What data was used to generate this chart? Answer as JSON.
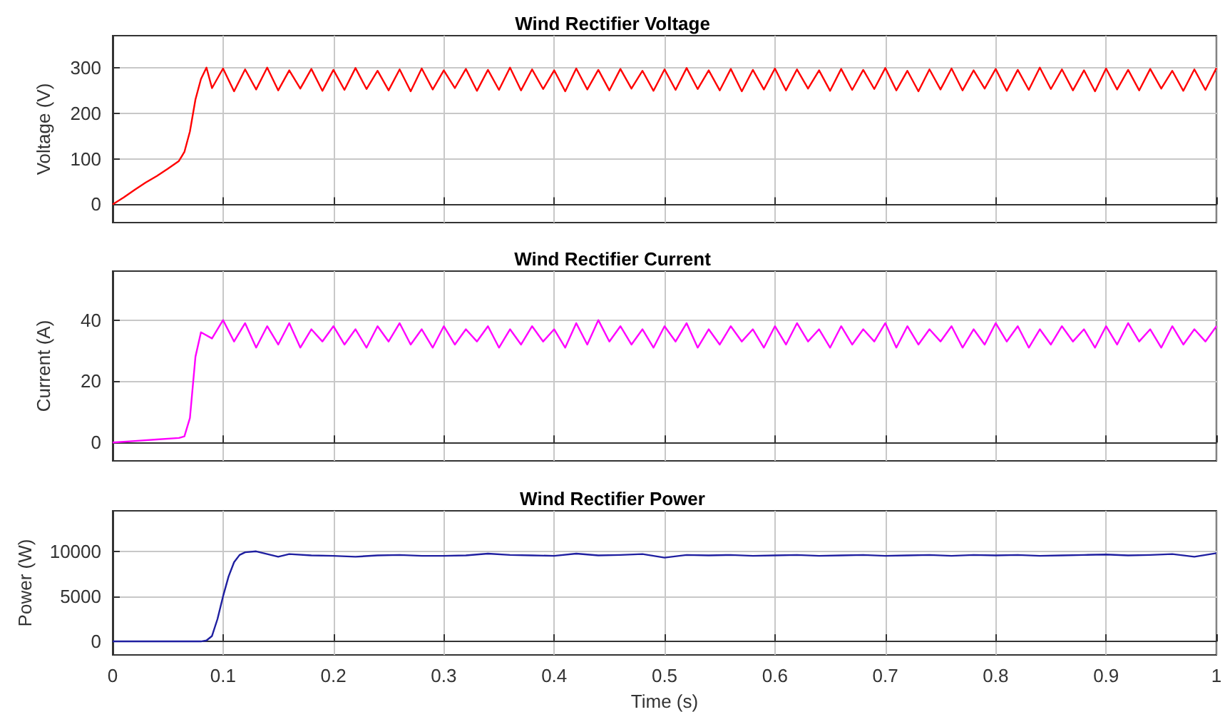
{
  "chart_data": [
    {
      "type": "line",
      "title": "Wind Rectifier Voltage",
      "ylabel": "Voltage (V)",
      "xlim": [
        0,
        1
      ],
      "xticks": [
        0,
        0.1,
        0.2,
        0.3,
        0.4,
        0.5,
        0.6,
        0.7,
        0.8,
        0.9,
        1
      ],
      "ylim": [
        -40,
        370
      ],
      "yticks": [
        0,
        100,
        200,
        300
      ],
      "grid": true,
      "tick_labels": "y",
      "series": [
        {
          "color": "#ff0000",
          "x": [
            0,
            0.01,
            0.02,
            0.03,
            0.04,
            0.05,
            0.06,
            0.065,
            0.07,
            0.075,
            0.08,
            0.085,
            0.09,
            0.1,
            0.11,
            0.12,
            0.13,
            0.14,
            0.15,
            0.16,
            0.17,
            0.18,
            0.19,
            0.2,
            0.21,
            0.22,
            0.23,
            0.24,
            0.25,
            0.26,
            0.27,
            0.28,
            0.29,
            0.3,
            0.31,
            0.32,
            0.33,
            0.34,
            0.35,
            0.36,
            0.37,
            0.38,
            0.39,
            0.4,
            0.41,
            0.42,
            0.43,
            0.44,
            0.45,
            0.46,
            0.47,
            0.48,
            0.49,
            0.5,
            0.51,
            0.52,
            0.53,
            0.54,
            0.55,
            0.56,
            0.57,
            0.58,
            0.59,
            0.6,
            0.61,
            0.62,
            0.63,
            0.64,
            0.65,
            0.66,
            0.67,
            0.68,
            0.69,
            0.7,
            0.71,
            0.72,
            0.73,
            0.74,
            0.75,
            0.76,
            0.77,
            0.78,
            0.79,
            0.8,
            0.81,
            0.82,
            0.83,
            0.84,
            0.85,
            0.86,
            0.87,
            0.88,
            0.89,
            0.9,
            0.91,
            0.92,
            0.93,
            0.94,
            0.95,
            0.96,
            0.97,
            0.98,
            0.99,
            1
          ],
          "values": [
            0,
            15,
            32,
            48,
            62,
            78,
            95,
            115,
            160,
            230,
            275,
            300,
            255,
            298,
            248,
            296,
            252,
            300,
            250,
            294,
            254,
            297,
            249,
            295,
            251,
            299,
            253,
            293,
            250,
            296,
            248,
            298,
            252,
            294,
            255,
            297,
            249,
            295,
            251,
            300,
            250,
            296,
            253,
            294,
            248,
            298,
            252,
            295,
            250,
            297,
            254,
            293,
            249,
            296,
            251,
            299,
            253,
            294,
            250,
            297,
            248,
            295,
            252,
            298,
            250,
            296,
            254,
            294,
            249,
            297,
            251,
            295,
            253,
            299,
            250,
            293,
            248,
            296,
            252,
            298,
            250,
            294,
            254,
            297,
            249,
            295,
            251,
            300,
            253,
            296,
            250,
            294,
            248,
            298,
            252,
            295,
            250,
            297,
            254,
            293,
            249,
            296,
            251,
            299
          ]
        }
      ]
    },
    {
      "type": "line",
      "title": "Wind Rectifier Current",
      "ylabel": "Current (A)",
      "xlim": [
        0,
        1
      ],
      "xticks": [
        0,
        0.1,
        0.2,
        0.3,
        0.4,
        0.5,
        0.6,
        0.7,
        0.8,
        0.9,
        1
      ],
      "ylim": [
        -6,
        56
      ],
      "yticks": [
        0,
        20,
        40
      ],
      "grid": true,
      "tick_labels": "y",
      "series": [
        {
          "color": "#ff00ff",
          "x": [
            0,
            0.02,
            0.04,
            0.06,
            0.065,
            0.07,
            0.075,
            0.08,
            0.09,
            0.1,
            0.11,
            0.12,
            0.13,
            0.14,
            0.15,
            0.16,
            0.17,
            0.18,
            0.19,
            0.2,
            0.21,
            0.22,
            0.23,
            0.24,
            0.25,
            0.26,
            0.27,
            0.28,
            0.29,
            0.3,
            0.31,
            0.32,
            0.33,
            0.34,
            0.35,
            0.36,
            0.37,
            0.38,
            0.39,
            0.4,
            0.41,
            0.42,
            0.43,
            0.44,
            0.45,
            0.46,
            0.47,
            0.48,
            0.49,
            0.5,
            0.51,
            0.52,
            0.53,
            0.54,
            0.55,
            0.56,
            0.57,
            0.58,
            0.59,
            0.6,
            0.61,
            0.62,
            0.63,
            0.64,
            0.65,
            0.66,
            0.67,
            0.68,
            0.69,
            0.7,
            0.71,
            0.72,
            0.73,
            0.74,
            0.75,
            0.76,
            0.77,
            0.78,
            0.79,
            0.8,
            0.81,
            0.82,
            0.83,
            0.84,
            0.85,
            0.86,
            0.87,
            0.88,
            0.89,
            0.9,
            0.91,
            0.92,
            0.93,
            0.94,
            0.95,
            0.96,
            0.97,
            0.98,
            0.99,
            1
          ],
          "values": [
            0,
            0.5,
            1,
            1.5,
            2,
            8,
            28,
            36,
            34,
            40,
            33,
            39,
            31,
            38,
            32,
            39,
            31,
            37,
            33,
            38,
            32,
            37,
            31,
            38,
            33,
            39,
            32,
            37,
            31,
            38,
            32,
            37,
            33,
            38,
            31,
            37,
            32,
            38,
            33,
            37,
            31,
            39,
            32,
            40,
            33,
            38,
            32,
            37,
            31,
            38,
            33,
            39,
            31,
            37,
            32,
            38,
            33,
            37,
            31,
            38,
            32,
            39,
            33,
            37,
            31,
            38,
            32,
            37,
            33,
            39,
            31,
            38,
            32,
            37,
            33,
            38,
            31,
            37,
            32,
            39,
            33,
            38,
            31,
            37,
            32,
            38,
            33,
            37,
            31,
            38,
            32,
            39,
            33,
            37,
            31,
            38,
            32,
            37,
            33,
            38
          ]
        }
      ]
    },
    {
      "type": "line",
      "title": "Wind Rectifier Power",
      "ylabel": "Power (W)",
      "xlabel": "Time (s)",
      "xlim": [
        0,
        1
      ],
      "xticks": [
        0,
        0.1,
        0.2,
        0.3,
        0.4,
        0.5,
        0.6,
        0.7,
        0.8,
        0.9,
        1
      ],
      "ylim": [
        -1500,
        14500
      ],
      "yticks": [
        0,
        5000,
        10000
      ],
      "grid": true,
      "series": [
        {
          "color": "#1f1fa0",
          "x": [
            0,
            0.02,
            0.04,
            0.06,
            0.08,
            0.085,
            0.09,
            0.095,
            0.1,
            0.105,
            0.11,
            0.115,
            0.12,
            0.13,
            0.14,
            0.15,
            0.16,
            0.18,
            0.2,
            0.22,
            0.24,
            0.26,
            0.28,
            0.3,
            0.32,
            0.34,
            0.36,
            0.38,
            0.4,
            0.42,
            0.44,
            0.46,
            0.48,
            0.5,
            0.52,
            0.54,
            0.56,
            0.58,
            0.6,
            0.62,
            0.64,
            0.66,
            0.68,
            0.7,
            0.72,
            0.74,
            0.76,
            0.78,
            0.8,
            0.82,
            0.84,
            0.86,
            0.88,
            0.9,
            0.92,
            0.94,
            0.96,
            0.98,
            1
          ],
          "values": [
            0,
            0,
            0,
            0,
            0,
            100,
            600,
            2500,
            5000,
            7200,
            8800,
            9600,
            9900,
            10000,
            9700,
            9400,
            9700,
            9550,
            9500,
            9400,
            9550,
            9600,
            9500,
            9500,
            9550,
            9750,
            9600,
            9550,
            9500,
            9750,
            9550,
            9600,
            9700,
            9300,
            9600,
            9550,
            9600,
            9500,
            9550,
            9600,
            9500,
            9550,
            9600,
            9500,
            9550,
            9600,
            9500,
            9600,
            9550,
            9600,
            9500,
            9550,
            9600,
            9650,
            9550,
            9600,
            9700,
            9400,
            9800
          ]
        }
      ]
    }
  ]
}
